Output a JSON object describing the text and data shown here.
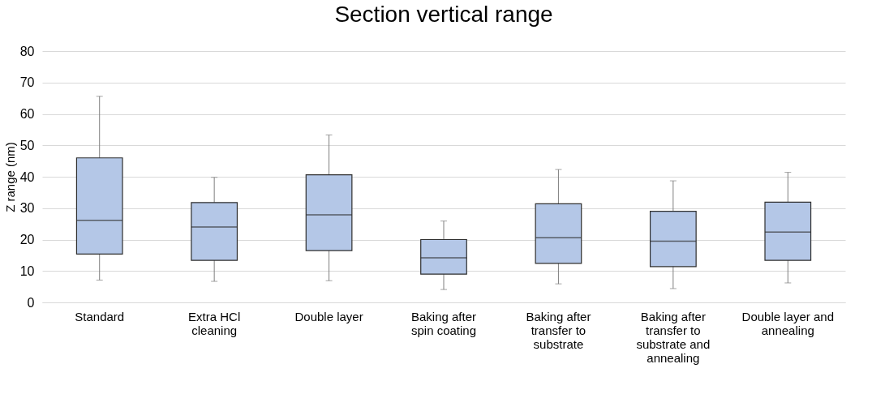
{
  "chart_data": {
    "type": "box",
    "title": "Section vertical range",
    "ylabel": "Z range (nm)",
    "categories": [
      "Standard",
      "Extra HCl cleaning",
      "Double layer",
      "Baking after spin coating",
      "Baking after transfer to substrate",
      "Baking after transfer to substrate and annealing",
      "Double layer and annealing"
    ],
    "series": [
      {
        "color": "#b4c7e7",
        "boxes": [
          {
            "low": 7.1,
            "q1": 15.4,
            "median": 26.1,
            "q3": 46.0,
            "high": 65.6
          },
          {
            "low": 6.7,
            "q1": 13.4,
            "median": 24.0,
            "q3": 31.8,
            "high": 39.8
          },
          {
            "low": 6.9,
            "q1": 16.5,
            "median": 27.9,
            "q3": 40.6,
            "high": 53.3
          },
          {
            "low": 4.1,
            "q1": 9.0,
            "median": 14.2,
            "q3": 20.0,
            "high": 25.9
          },
          {
            "low": 5.9,
            "q1": 12.4,
            "median": 20.6,
            "q3": 31.4,
            "high": 42.3
          },
          {
            "low": 4.4,
            "q1": 11.4,
            "median": 19.5,
            "q3": 29.0,
            "high": 38.7
          },
          {
            "low": 6.2,
            "q1": 13.4,
            "median": 22.4,
            "q3": 31.9,
            "high": 41.4
          }
        ]
      }
    ],
    "ylim": [
      0,
      80
    ],
    "yticks": [
      0,
      10,
      20,
      30,
      40,
      50,
      60,
      70,
      80
    ],
    "grid": "y"
  }
}
